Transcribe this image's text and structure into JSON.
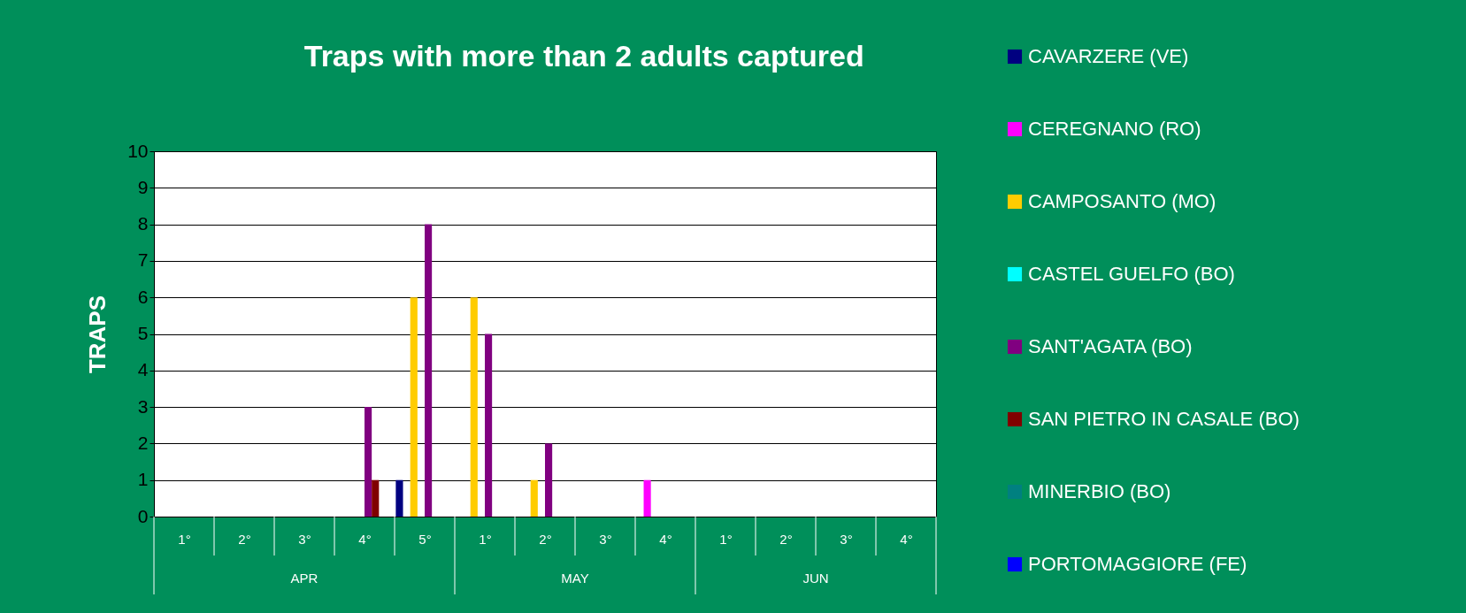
{
  "chart_data": {
    "type": "bar",
    "title": "Traps with more than 2 adults captured",
    "ylabel": "TRAPS",
    "categories": [
      "1°",
      "2°",
      "3°",
      "4°",
      "5°",
      "1°",
      "2°",
      "3°",
      "4°",
      "1°",
      "2°",
      "3°",
      "4°"
    ],
    "annotations": [
      "APR",
      "MAY",
      "JUN"
    ],
    "series": [
      {
        "name": "CAVARZERE (VE)",
        "color": "#000080",
        "values": [
          null,
          null,
          null,
          null,
          1,
          null,
          null,
          null,
          null,
          null,
          null,
          null,
          null
        ]
      },
      {
        "name": "CEREGNANO (RO)",
        "color": "#ff00ff",
        "values": [
          null,
          null,
          null,
          null,
          null,
          null,
          null,
          null,
          1,
          null,
          null,
          null,
          null
        ]
      },
      {
        "name": "CAMPOSANTO (MO)",
        "color": "#ffcc00",
        "values": [
          null,
          null,
          null,
          null,
          6,
          6,
          1,
          null,
          null,
          null,
          null,
          null,
          null
        ]
      },
      {
        "name": "CASTEL GUELFO (BO)",
        "color": "#00ffff",
        "values": [
          null,
          null,
          null,
          null,
          null,
          null,
          null,
          null,
          null,
          null,
          null,
          null,
          null
        ]
      },
      {
        "name": "SANT'AGATA (BO)",
        "color": "#800080",
        "values": [
          null,
          null,
          null,
          3,
          8,
          5,
          2,
          null,
          null,
          null,
          null,
          null,
          null
        ]
      },
      {
        "name": "SAN PIETRO IN CASALE (BO)",
        "color": "#800000",
        "values": [
          null,
          null,
          null,
          1,
          null,
          null,
          null,
          null,
          null,
          null,
          null,
          null,
          null
        ]
      },
      {
        "name": "MINERBIO (BO)",
        "color": "#008080",
        "values": [
          null,
          null,
          null,
          null,
          null,
          null,
          null,
          null,
          null,
          null,
          null,
          null,
          null
        ]
      },
      {
        "name": "PORTOMAGGIORE (FE)",
        "color": "#0000ff",
        "values": [
          null,
          null,
          null,
          null,
          null,
          null,
          null,
          null,
          null,
          null,
          null,
          null,
          null
        ]
      }
    ],
    "ylim": [
      0,
      10
    ],
    "yticks": [
      0,
      1,
      2,
      3,
      4,
      5,
      6,
      7,
      8,
      9,
      10
    ],
    "grid": "y",
    "legend": "right"
  }
}
